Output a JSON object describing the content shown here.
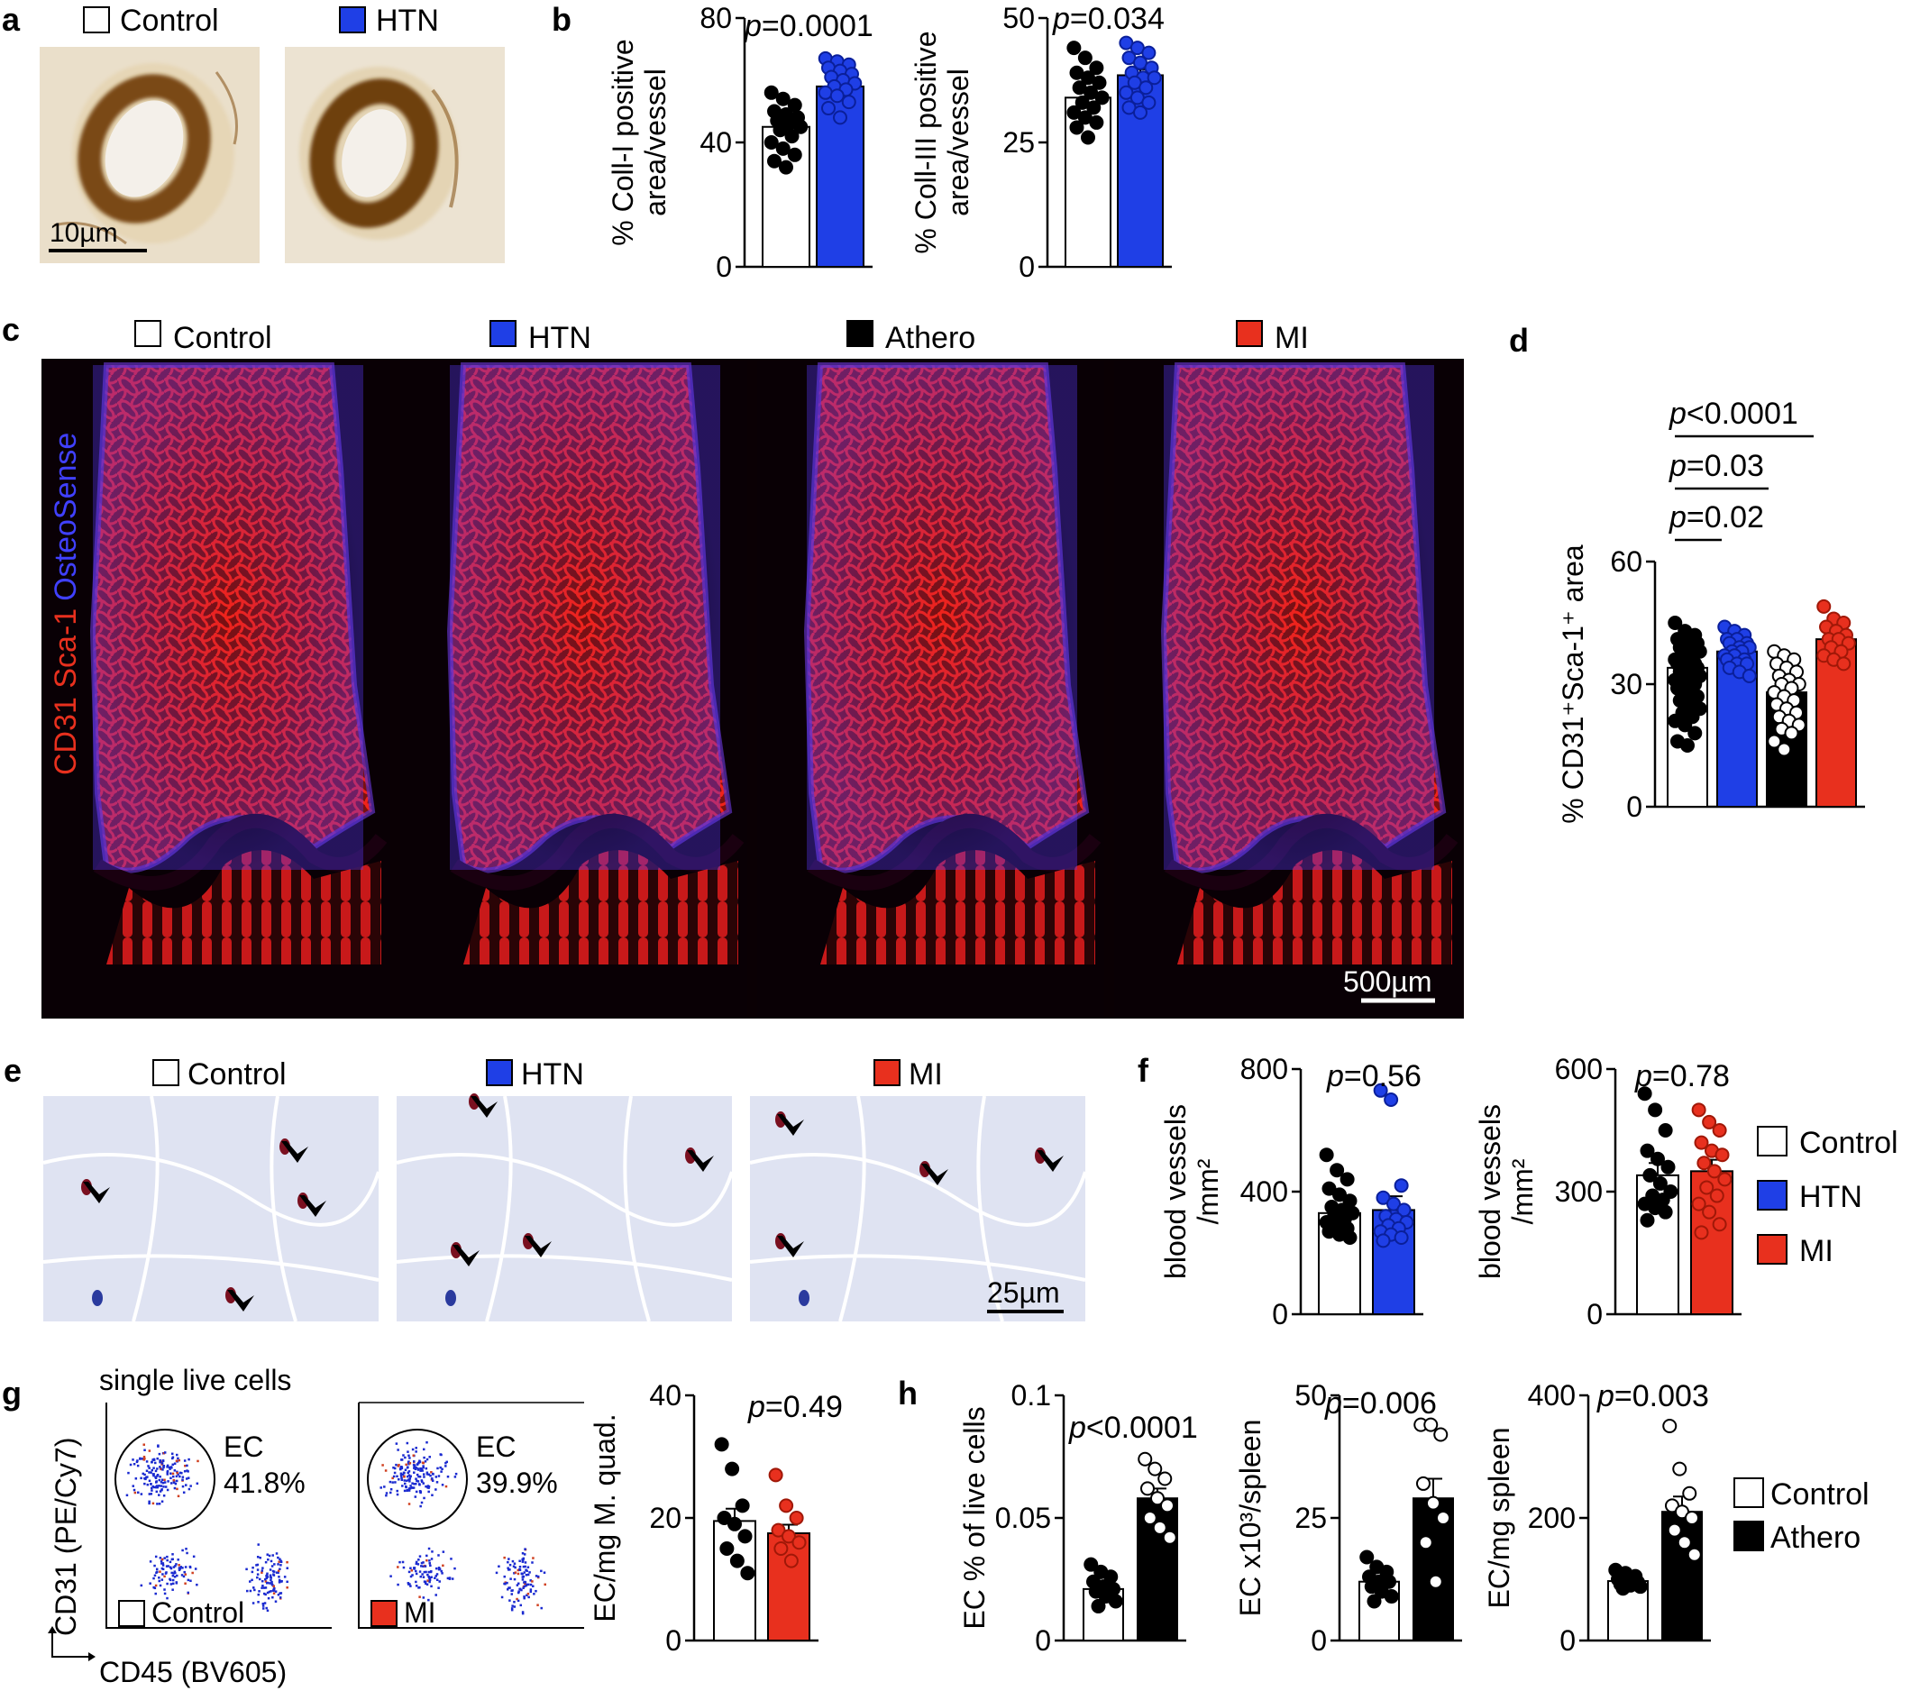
{
  "colors": {
    "control": "#ffffff",
    "htn": "#1f3fe6",
    "athero": "#000000",
    "mi": "#e8301e",
    "brown": "#9a6a2a",
    "tissue_bg": "#dfe3f2",
    "nucleus": "#2a3a9e"
  },
  "panel_a": {
    "letter": "a",
    "legend": [
      {
        "label": "Control",
        "color_key": "control"
      },
      {
        "label": "HTN",
        "color_key": "htn"
      }
    ],
    "scalebar": "10µm"
  },
  "panel_b": {
    "letter": "b"
  },
  "panel_c": {
    "letter": "c",
    "groups": [
      {
        "label": "Control",
        "color_key": "control"
      },
      {
        "label": "HTN",
        "color_key": "htn"
      },
      {
        "label": "Athero",
        "color_key": "athero"
      },
      {
        "label": "MI",
        "color_key": "mi"
      }
    ],
    "stain_label_red": "CD31 Sca-1",
    "stain_label_blue": "OsteoSense",
    "scalebar": "500µm"
  },
  "panel_d": {
    "letter": "d"
  },
  "panel_e": {
    "letter": "e",
    "groups": [
      {
        "label": "Control",
        "color_key": "control"
      },
      {
        "label": "HTN",
        "color_key": "htn"
      },
      {
        "label": "MI",
        "color_key": "mi"
      }
    ],
    "scalebar": "25µm"
  },
  "panel_f": {
    "letter": "f",
    "legend": [
      {
        "label": "Control",
        "color_key": "control"
      },
      {
        "label": "HTN",
        "color_key": "htn"
      },
      {
        "label": "MI",
        "color_key": "mi"
      }
    ]
  },
  "panel_g": {
    "letter": "g",
    "title": "single live cells",
    "y_axis": "CD31 (PE/Cy7)",
    "x_axis": "CD45 (BV605)",
    "plots": [
      {
        "gate": "EC",
        "pct": "41.8%",
        "sample": "Control",
        "color_key": "control"
      },
      {
        "gate": "EC",
        "pct": "39.9%",
        "sample": "MI",
        "color_key": "mi"
      }
    ]
  },
  "panel_h": {
    "letter": "h",
    "legend": [
      {
        "label": "Control",
        "color_key": "control"
      },
      {
        "label": "Athero",
        "color_key": "athero"
      }
    ]
  },
  "chart_data": [
    {
      "id": "b1",
      "type": "bar",
      "ylabel": [
        "% Coll-I positive",
        "area/vessel"
      ],
      "pvalue": "p=0.0001",
      "ylim": [
        0,
        80
      ],
      "yticks": [
        0,
        40,
        80
      ],
      "series": [
        {
          "name": "Control",
          "mean": 45,
          "sem": 3,
          "color_key": "control",
          "points": [
            56,
            54,
            52,
            50,
            49,
            48,
            47,
            46,
            45,
            44,
            42,
            40,
            38,
            36,
            34,
            32
          ]
        },
        {
          "name": "HTN",
          "mean": 58,
          "sem": 2,
          "color_key": "htn",
          "points": [
            67,
            66,
            65,
            64,
            63,
            62,
            61,
            60,
            59,
            58,
            57,
            56,
            55,
            53,
            51,
            48
          ]
        }
      ]
    },
    {
      "id": "b2",
      "type": "bar",
      "ylabel": [
        "% Coll-III positive",
        "area/vessel"
      ],
      "pvalue": "p=0.034",
      "ylim": [
        0,
        50
      ],
      "yticks": [
        0,
        25,
        50
      ],
      "series": [
        {
          "name": "Control",
          "mean": 34,
          "sem": 1.8,
          "color_key": "control",
          "points": [
            44,
            42,
            40,
            39,
            38,
            37,
            36,
            35,
            34,
            33,
            32,
            31,
            30,
            29,
            28,
            26
          ]
        },
        {
          "name": "HTN",
          "mean": 38.5,
          "sem": 1.2,
          "color_key": "htn",
          "points": [
            45,
            44,
            43,
            42,
            41,
            40,
            39,
            38,
            38,
            37,
            36,
            35,
            34,
            33,
            32,
            31
          ]
        }
      ]
    },
    {
      "id": "d",
      "type": "bar",
      "ylabel": [
        "% CD31⁺Sca-1⁺ area"
      ],
      "ylim": [
        0,
        60
      ],
      "yticks": [
        0,
        30,
        60
      ],
      "pvalues": [
        "p=0.02",
        "p=0.03",
        "p<0.0001"
      ],
      "series": [
        {
          "name": "Control",
          "mean": 34,
          "sem": 1,
          "color_key": "control",
          "points": [
            45,
            43,
            42,
            41,
            40,
            40,
            39,
            38,
            38,
            37,
            37,
            36,
            36,
            35,
            35,
            34,
            34,
            33,
            33,
            32,
            32,
            31,
            31,
            30,
            30,
            29,
            28,
            27,
            26,
            25,
            24,
            23,
            22,
            21,
            20,
            18,
            16,
            15
          ]
        },
        {
          "name": "HTN",
          "mean": 38,
          "sem": 1,
          "color_key": "htn",
          "points": [
            44,
            43,
            42,
            41,
            41,
            40,
            40,
            39,
            39,
            38,
            38,
            37,
            37,
            36,
            36,
            35,
            35,
            34,
            33,
            32
          ]
        },
        {
          "name": "Athero",
          "mean": 28,
          "sem": 1.5,
          "color_key": "athero",
          "points": [
            38,
            37,
            36,
            35,
            34,
            33,
            32,
            31,
            30,
            30,
            29,
            28,
            27,
            26,
            25,
            24,
            23,
            22,
            21,
            20,
            19,
            18,
            16,
            14
          ]
        },
        {
          "name": "MI",
          "mean": 41,
          "sem": 1,
          "color_key": "mi",
          "points": [
            49,
            46,
            45,
            44,
            43,
            42,
            41,
            41,
            40,
            39,
            38,
            37,
            36,
            35
          ]
        }
      ]
    },
    {
      "id": "f1",
      "type": "bar",
      "ylabel": [
        "blood vessels",
        "/mm²"
      ],
      "pvalue": "p=0.56",
      "ylim": [
        0,
        800
      ],
      "yticks": [
        0,
        400,
        800
      ],
      "series": [
        {
          "name": "Control",
          "mean": 330,
          "sem": 25,
          "color_key": "control",
          "points": [
            520,
            470,
            440,
            410,
            390,
            370,
            350,
            340,
            330,
            320,
            310,
            300,
            290,
            280,
            270,
            260,
            250
          ]
        },
        {
          "name": "HTN",
          "mean": 340,
          "sem": 45,
          "color_key": "htn",
          "points": [
            730,
            700,
            420,
            380,
            360,
            340,
            320,
            310,
            300,
            290,
            280,
            270,
            260,
            250,
            240
          ]
        }
      ]
    },
    {
      "id": "f2",
      "type": "bar",
      "ylabel": [
        "blood vessels",
        "/mm²"
      ],
      "pvalue": "p=0.78",
      "ylim": [
        0,
        600
      ],
      "yticks": [
        0,
        300,
        600
      ],
      "series": [
        {
          "name": "Control",
          "mean": 340,
          "sem": 30,
          "color_key": "control",
          "points": [
            540,
            500,
            450,
            400,
            380,
            360,
            340,
            320,
            300,
            290,
            280,
            270,
            260,
            250,
            230
          ]
        },
        {
          "name": "MI",
          "mean": 350,
          "sem": 28,
          "color_key": "mi",
          "points": [
            500,
            470,
            450,
            420,
            400,
            390,
            370,
            350,
            330,
            310,
            290,
            270,
            250,
            220,
            200
          ]
        }
      ]
    },
    {
      "id": "g",
      "type": "bar",
      "ylabel": [
        "EC/mg M. quad."
      ],
      "pvalue": "p=0.49",
      "ylim": [
        0,
        40
      ],
      "yticks": [
        0,
        20,
        40
      ],
      "series": [
        {
          "name": "Control",
          "mean": 19.5,
          "sem": 2,
          "color_key": "control",
          "points": [
            32,
            28,
            22,
            20,
            19,
            17,
            15,
            13,
            11
          ]
        },
        {
          "name": "MI",
          "mean": 17.5,
          "sem": 1.4,
          "color_key": "mi",
          "points": [
            27,
            22,
            20,
            18,
            17,
            16,
            15,
            13
          ]
        }
      ]
    },
    {
      "id": "h1",
      "type": "bar",
      "ylabel": [
        "EC % of live cells"
      ],
      "pvalue": "p<0.0001",
      "ylim": [
        0,
        0.1
      ],
      "yticks": [
        0,
        0.05,
        0.1
      ],
      "series": [
        {
          "name": "Control",
          "mean": 0.021,
          "sem": 0.002,
          "color_key": "control",
          "points": [
            0.031,
            0.028,
            0.026,
            0.024,
            0.022,
            0.021,
            0.02,
            0.018,
            0.016,
            0.014
          ]
        },
        {
          "name": "Athero",
          "mean": 0.058,
          "sem": 0.004,
          "color_key": "athero",
          "points": [
            0.074,
            0.07,
            0.066,
            0.062,
            0.058,
            0.055,
            0.05,
            0.046,
            0.042
          ]
        }
      ]
    },
    {
      "id": "h2",
      "type": "bar",
      "ylabel": [
        "EC x10³/spleen"
      ],
      "pvalue": "p=0.006",
      "ylim": [
        0,
        50
      ],
      "yticks": [
        0,
        25,
        50
      ],
      "series": [
        {
          "name": "Control",
          "mean": 12,
          "sem": 1,
          "color_key": "control",
          "points": [
            17,
            15,
            14,
            13,
            12,
            12,
            11,
            10,
            9,
            8
          ]
        },
        {
          "name": "Athero",
          "mean": 29,
          "sem": 4,
          "color_key": "athero",
          "points": [
            44,
            44,
            42,
            32,
            28,
            25,
            20,
            12
          ]
        }
      ]
    },
    {
      "id": "h3",
      "type": "bar",
      "ylabel": [
        "EC/mg spleen"
      ],
      "pvalue": "p=0.003",
      "ylim": [
        0,
        400
      ],
      "yticks": [
        0,
        200,
        400
      ],
      "series": [
        {
          "name": "Control",
          "mean": 97,
          "sem": 5,
          "color_key": "control",
          "points": [
            115,
            110,
            105,
            100,
            98,
            95,
            92,
            90,
            88,
            85
          ]
        },
        {
          "name": "Athero",
          "mean": 210,
          "sem": 25,
          "color_key": "athero",
          "points": [
            350,
            280,
            240,
            220,
            210,
            200,
            180,
            160,
            140
          ]
        }
      ]
    }
  ]
}
